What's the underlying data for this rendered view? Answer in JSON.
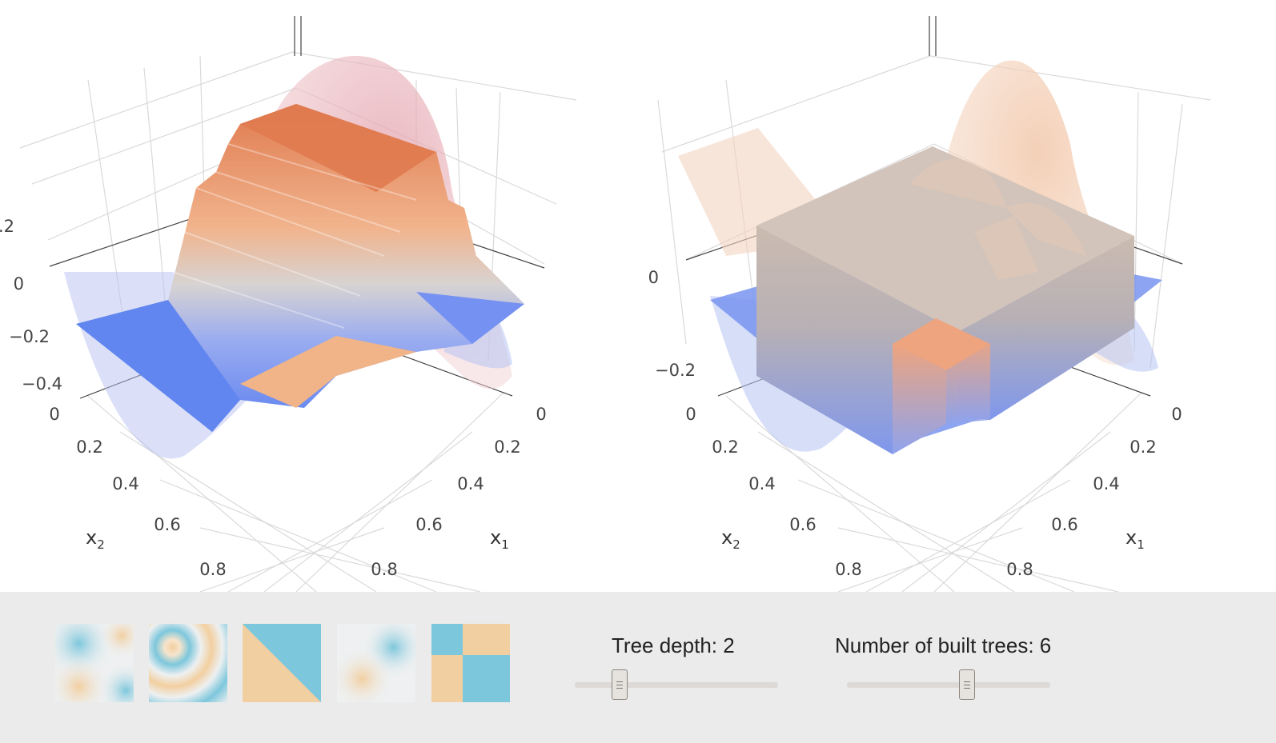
{
  "plots": [
    {
      "z_ticks": [
        ".2",
        "0",
        "−0.2",
        "−0.4"
      ],
      "x2_ticks": [
        "0",
        "0.2",
        "0.4",
        "0.6",
        "0.8"
      ],
      "x1_ticks": [
        "0",
        "0.2",
        "0.4",
        "0.6",
        "0.8"
      ],
      "x2_label": "x",
      "x2_sub": "2",
      "x1_label": "x",
      "x1_sub": "1"
    },
    {
      "z_ticks": [
        "0",
        "−0.2"
      ],
      "x2_ticks": [
        "0",
        "0.2",
        "0.4",
        "0.6",
        "0.8"
      ],
      "x1_ticks": [
        "0",
        "0.2",
        "0.4",
        "0.6",
        "0.8"
      ],
      "x2_label": "x",
      "x2_sub": "2",
      "x1_label": "x",
      "x1_sub": "1"
    }
  ],
  "colors": {
    "surface_high": "#e07a4f",
    "surface_mid": "#d9c9c0",
    "surface_low": "#5b7ff0",
    "target_red": "#e8a8b0",
    "target_blue": "#b7c2f2",
    "panel_bg": "#ebebeb",
    "thumb_blue": "#7dc7dc",
    "thumb_tan": "#f2cfa0"
  },
  "presets": [
    {
      "name": "preset-quadrants-soft",
      "icon": "function-preview-icon"
    },
    {
      "name": "preset-rings",
      "icon": "function-preview-icon"
    },
    {
      "name": "preset-diagonal-split",
      "icon": "function-preview-icon"
    },
    {
      "name": "preset-diagonal-blobs",
      "icon": "function-preview-icon"
    },
    {
      "name": "preset-checkerboard",
      "icon": "function-preview-icon"
    }
  ],
  "controls": {
    "tree_depth": {
      "label": "Tree depth: 2",
      "fraction": 0.22
    },
    "num_trees": {
      "label": "Number of built trees: 6",
      "fraction": 0.59
    }
  }
}
